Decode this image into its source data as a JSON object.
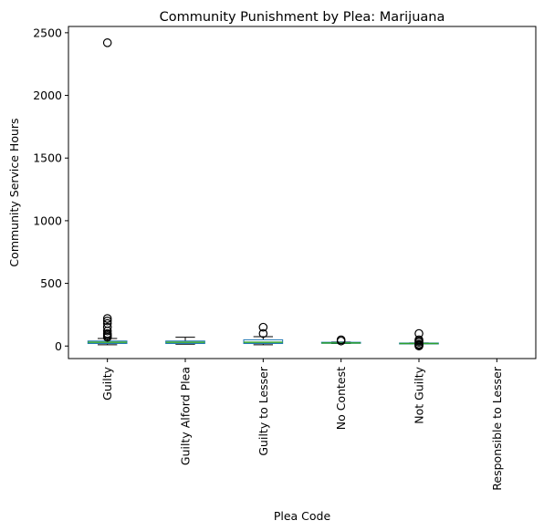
{
  "chart_data": {
    "type": "box",
    "title": "Community Punishment by Plea: Marijuana",
    "xlabel": "Plea Code",
    "ylabel": "Community Service Hours",
    "ylim": [
      -100,
      2550
    ],
    "yticks": [
      0,
      500,
      1000,
      1500,
      2000,
      2500
    ],
    "grid": false,
    "colors": {
      "box": "#1f77b4",
      "median": "#2ca02c",
      "whisker": "#000000",
      "outlier": "#000000"
    },
    "categories": [
      "Guilty",
      "Guilty Alford Plea",
      "Guilty to Lesser",
      "No Contest",
      "Not Guilty",
      "Responsible to Lesser"
    ],
    "boxes": [
      {
        "category": "Guilty",
        "whisker_low": 10,
        "q1": 20,
        "median": 30,
        "q3": 40,
        "whisker_high": 60,
        "outliers": [
          70,
          80,
          90,
          100,
          120,
          150,
          180,
          200,
          220,
          2420
        ]
      },
      {
        "category": "Guilty Alford Plea",
        "whisker_low": 15,
        "q1": 20,
        "median": 30,
        "q3": 40,
        "whisker_high": 70,
        "outliers": []
      },
      {
        "category": "Guilty to Lesser",
        "whisker_low": 10,
        "q1": 20,
        "median": 30,
        "q3": 50,
        "whisker_high": 75,
        "outliers": [
          100,
          150
        ]
      },
      {
        "category": "No Contest",
        "whisker_low": 20,
        "q1": 22,
        "median": 25,
        "q3": 30,
        "whisker_high": 32,
        "outliers": [
          40,
          50
        ]
      },
      {
        "category": "Not Guilty",
        "whisker_low": 18,
        "q1": 20,
        "median": 20,
        "q3": 24,
        "whisker_high": 25,
        "outliers": [
          0,
          5,
          10,
          15,
          30,
          40,
          50,
          100
        ]
      },
      {
        "category": "Responsible to Lesser",
        "whisker_low": null,
        "q1": null,
        "median": null,
        "q3": null,
        "whisker_high": null,
        "outliers": []
      }
    ]
  }
}
